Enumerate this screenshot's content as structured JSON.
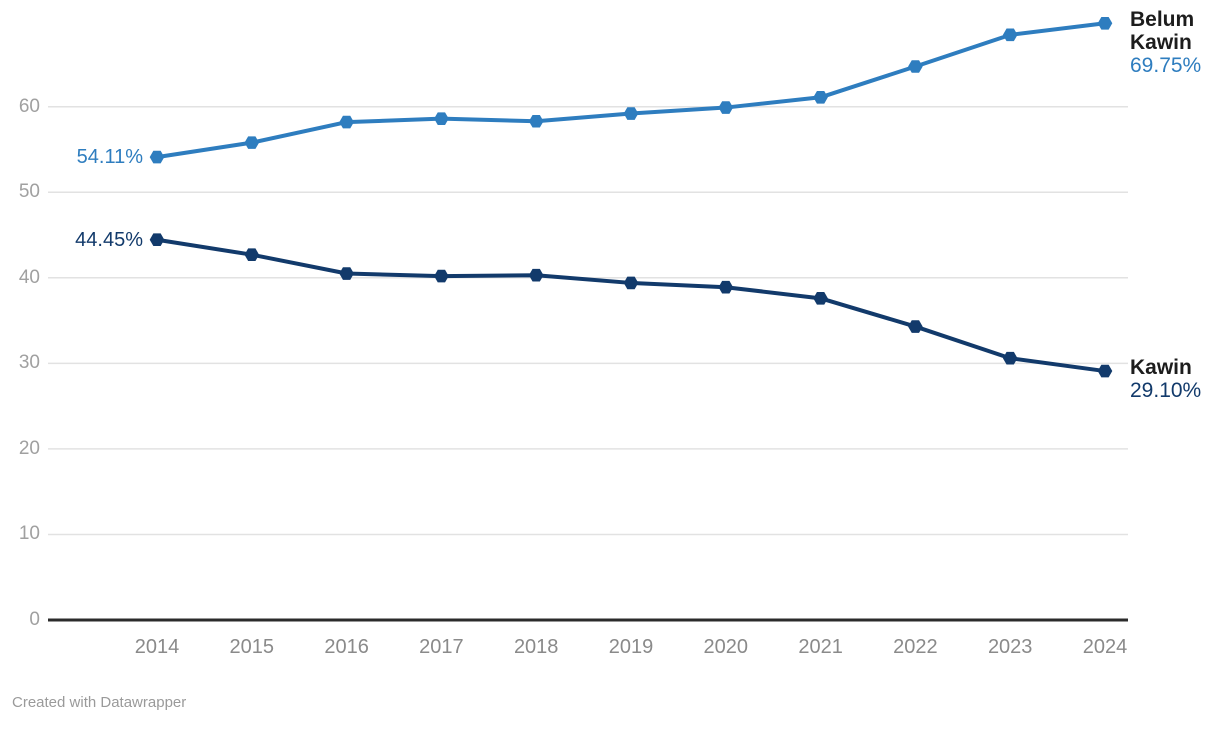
{
  "chart_data": {
    "type": "line",
    "title": "",
    "x": [
      "2014",
      "2015",
      "2016",
      "2017",
      "2018",
      "2019",
      "2020",
      "2021",
      "2022",
      "2023",
      "2024"
    ],
    "series": [
      {
        "name": "Belum Kawin",
        "color": "#2e7dbf",
        "values": [
          54.11,
          55.8,
          58.2,
          58.6,
          58.3,
          59.2,
          59.9,
          61.1,
          64.7,
          68.4,
          69.75
        ],
        "start_label": "54.11%",
        "end_label": "69.75%"
      },
      {
        "name": "Kawin",
        "color": "#123a6b",
        "values": [
          44.45,
          42.7,
          40.5,
          40.2,
          40.3,
          39.4,
          38.9,
          37.6,
          34.3,
          30.6,
          29.1
        ],
        "start_label": "44.45%",
        "end_label": "29.10%"
      }
    ],
    "ylim": [
      0,
      70
    ],
    "yticks": [
      0,
      10,
      20,
      30,
      40,
      50,
      60
    ],
    "xlabel": "",
    "ylabel": "",
    "grid": "horizontal",
    "legend_position": "direct labels at line start and end",
    "marker": "hexagon",
    "colors": {
      "grid": "#e2e2e2",
      "axis_baseline": "#2b2b2b",
      "y_tick_text": "#a0a0a0",
      "x_tick_text": "#8a8a8a",
      "series_name_text": "#1d1d1d",
      "credit_text": "#9a9a9a",
      "background": "#ffffff"
    }
  },
  "footer": {
    "credit": "Created with Datawrapper"
  }
}
